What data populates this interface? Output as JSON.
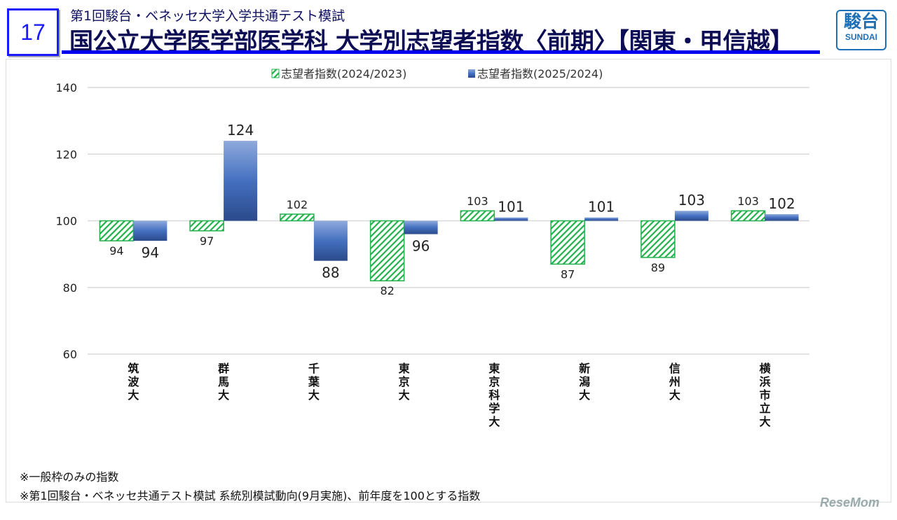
{
  "header": {
    "slide_number": "17",
    "subtitle": "第1回駿台・ベネッセ大学入学共通テスト模試",
    "title": "国公立大学医学部医学科 大学別志望者指数〈前期〉【関東・甲信越】"
  },
  "logo": {
    "kanji": "駿台",
    "english": "SUNDAI"
  },
  "chart_data": {
    "type": "bar",
    "title": "",
    "categories": [
      "筑波大",
      "群馬大",
      "千葉大",
      "東京大",
      "東京科学大",
      "新潟大",
      "信州大",
      "横浜市立大"
    ],
    "series": [
      {
        "name": "志望者指数(2024/2023)",
        "values": [
          94,
          97,
          102,
          82,
          103,
          87,
          89,
          103
        ],
        "color": "#22b14c",
        "pattern": "hatch"
      },
      {
        "name": "志望者指数(2025/2024)",
        "values": [
          94,
          124,
          88,
          96,
          101,
          101,
          103,
          102
        ],
        "color": "#3a62b0",
        "pattern": "gradient"
      }
    ],
    "baseline": 100,
    "ylim": [
      60,
      140
    ],
    "yticks": [
      60,
      80,
      100,
      120,
      140
    ],
    "grid": true,
    "legend": "top"
  },
  "notes": [
    "※一般枠のみの指数",
    "※第1回駿台・ベネッセ共通テスト模試 系統別模試動向(9月実施)、前年度を100とする指数"
  ],
  "watermark": "ReseMom"
}
